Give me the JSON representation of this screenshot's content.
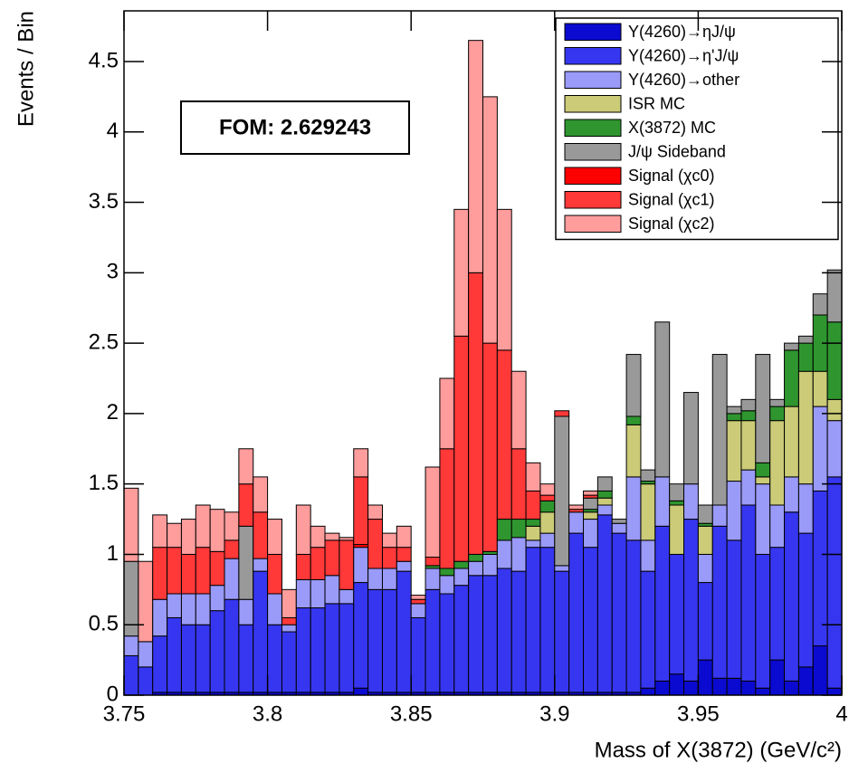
{
  "chart_data": {
    "type": "stacked_histogram",
    "annotation": "FOM: 2.629243",
    "x_label": "Mass of X(3872) (GeV/c²)",
    "y_label": "Events / Bin",
    "xlim": [
      3.75,
      4.0
    ],
    "ylim": [
      0,
      4.86
    ],
    "xticks": [
      3.75,
      3.8,
      3.85,
      3.9,
      3.95,
      4
    ],
    "yticks": [
      0,
      0.5,
      1,
      1.5,
      2,
      2.5,
      3,
      3.5,
      4,
      4.5
    ],
    "legend": "top-right",
    "bins": [
      3.75,
      3.755,
      3.76,
      3.765,
      3.77,
      3.775,
      3.78,
      3.785,
      3.79,
      3.795,
      3.8,
      3.805,
      3.81,
      3.815,
      3.82,
      3.825,
      3.83,
      3.835,
      3.84,
      3.845,
      3.85,
      3.855,
      3.86,
      3.865,
      3.87,
      3.875,
      3.88,
      3.885,
      3.89,
      3.895,
      3.9,
      3.905,
      3.91,
      3.915,
      3.92,
      3.925,
      3.93,
      3.935,
      3.94,
      3.945,
      3.95,
      3.955,
      3.96,
      3.965,
      3.97,
      3.975,
      3.98,
      3.985,
      3.99,
      3.995,
      4.0
    ],
    "series": [
      {
        "name": "Y(4260)→ηJ/ψ",
        "color": "#0a0ad0",
        "values": [
          0,
          0,
          0.02,
          0.02,
          0.02,
          0.02,
          0.02,
          0.02,
          0.02,
          0.02,
          0.02,
          0.02,
          0.02,
          0.02,
          0.02,
          0.02,
          0.05,
          0.02,
          0.02,
          0.02,
          0.02,
          0.02,
          0.02,
          0.02,
          0.02,
          0.02,
          0.02,
          0.02,
          0.02,
          0.02,
          0.02,
          0.02,
          0.02,
          0.02,
          0.02,
          0.02,
          0.05,
          0.1,
          0.15,
          0.1,
          0.25,
          0.12,
          0.12,
          0.1,
          0.05,
          0.25,
          0.1,
          0.2,
          0.35,
          0.05
        ]
      },
      {
        "name": "Y(4260)→η'J/ψ",
        "color": "#3636f0",
        "values": [
          0.28,
          0.2,
          0.4,
          0.53,
          0.48,
          0.48,
          0.58,
          0.66,
          0.48,
          0.86,
          0.48,
          0.43,
          0.6,
          0.6,
          0.63,
          0.63,
          0.75,
          0.73,
          0.73,
          0.86,
          0.53,
          0.73,
          0.7,
          0.76,
          0.83,
          0.83,
          0.88,
          0.86,
          1.03,
          1.03,
          0.86,
          1.13,
          1.03,
          1.26,
          1.13,
          1.08,
          0.83,
          1.1,
          0.85,
          1.15,
          0.55,
          1.08,
          0.98,
          1.25,
          0.95,
          0.8,
          1.2,
          0.95,
          1.1,
          1.5
        ]
      },
      {
        "name": "Y(4260)→other",
        "color": "#9a9af8",
        "values": [
          0.14,
          0.18,
          0.26,
          0.17,
          0.22,
          0.22,
          0.18,
          0.29,
          0.18,
          0.09,
          0.22,
          0.05,
          0.2,
          0.2,
          0.2,
          0.1,
          0.25,
          0.15,
          0.15,
          0.07,
          0.1,
          0.15,
          0.13,
          0.12,
          0.1,
          0.15,
          0.2,
          0.24,
          0.05,
          0.1,
          0.04,
          0.15,
          0.2,
          0.07,
          0.07,
          0.45,
          0.22,
          0.35,
          0,
          0.25,
          0.2,
          0.15,
          0.42,
          0.25,
          0.5,
          0.3,
          0.25,
          0.35,
          0.6,
          0.4
        ]
      },
      {
        "name": "ISR MC",
        "color": "#cbcb78",
        "values": [
          0,
          0,
          0,
          0,
          0,
          0,
          0,
          0,
          0,
          0,
          0,
          0,
          0,
          0,
          0,
          0,
          0,
          0,
          0,
          0,
          0,
          0,
          0,
          0,
          0,
          0,
          0,
          0,
          0.1,
          0.15,
          0,
          0,
          0.05,
          0.05,
          0,
          0.37,
          0.4,
          0,
          0.35,
          0,
          0.2,
          0,
          0.43,
          0.35,
          0.05,
          0.6,
          0.5,
          0.8,
          0.25,
          0.15
        ]
      },
      {
        "name": "X(3872) MC",
        "color": "#2f962f",
        "values": [
          0,
          0,
          0,
          0,
          0,
          0,
          0,
          0,
          0,
          0,
          0,
          0,
          0,
          0,
          0,
          0,
          0,
          0,
          0,
          0,
          0,
          0.02,
          0.05,
          0.05,
          0.05,
          0.02,
          0.15,
          0.13,
          0.05,
          0.08,
          0,
          0,
          0.02,
          0.05,
          0,
          0.06,
          0.02,
          0,
          0.03,
          0,
          0.02,
          0,
          0.05,
          0.07,
          0.1,
          0.1,
          0.4,
          0.2,
          0.4,
          0.55
        ]
      },
      {
        "name": "J/ψ Sideband",
        "color": "#999999",
        "values": [
          0.53,
          0,
          0,
          0,
          0,
          0,
          0,
          0,
          0.52,
          0,
          0,
          0,
          0,
          0,
          0,
          0,
          0,
          0,
          0,
          0,
          0,
          0,
          0,
          0,
          0,
          0,
          0,
          0,
          0,
          0,
          1.06,
          0,
          0.08,
          0.1,
          0.03,
          0.44,
          0.08,
          1.1,
          0.12,
          0.65,
          0.13,
          1.07,
          0.05,
          0.08,
          0.77,
          0.05,
          0.05,
          0.05,
          0.15,
          0.37
        ]
      },
      {
        "name": "Signal (χc0)",
        "color": "#ff0000",
        "values": [
          0,
          0,
          0,
          0,
          0,
          0,
          0,
          0,
          0,
          0,
          0,
          0,
          0,
          0,
          0,
          0,
          0.02,
          0,
          0,
          0,
          0,
          0,
          0,
          0,
          0,
          0,
          0,
          0,
          0,
          0,
          0,
          0,
          0,
          0,
          0,
          0,
          0,
          0,
          0,
          0,
          0,
          0,
          0,
          0,
          0,
          0,
          0,
          0,
          0,
          0
        ]
      },
      {
        "name": "Signal (χc1)",
        "color": "#ff3838",
        "values": [
          0,
          0,
          0.37,
          0.33,
          0.28,
          0.33,
          0.24,
          0.13,
          0.3,
          0.33,
          0.28,
          0.05,
          0.18,
          0.23,
          0.25,
          0.35,
          0.48,
          0.35,
          0.15,
          0.1,
          0.03,
          0.06,
          0.85,
          1.6,
          2.0,
          1.48,
          1.2,
          0.5,
          0.2,
          0.04,
          0.04,
          0.02,
          0.02,
          0,
          0,
          0,
          0,
          0,
          0,
          0,
          0,
          0,
          0,
          0,
          0,
          0,
          0,
          0,
          0,
          0
        ]
      },
      {
        "name": "Signal (χc2)",
        "color": "#ff9c9c",
        "values": [
          0.52,
          0.57,
          0.23,
          0.17,
          0.25,
          0.3,
          0.3,
          0.2,
          0.25,
          0.25,
          0.25,
          0.2,
          0.35,
          0.15,
          0.05,
          0.02,
          0.2,
          0.1,
          0.1,
          0.15,
          0.03,
          0.64,
          0.5,
          0.9,
          1.65,
          1.75,
          1.0,
          0.55,
          0.2,
          0.08,
          0,
          0.03,
          0.03,
          0,
          0,
          0,
          0,
          0,
          0,
          0,
          0,
          0,
          0,
          0,
          0,
          0,
          0,
          0,
          0,
          0
        ]
      }
    ]
  }
}
